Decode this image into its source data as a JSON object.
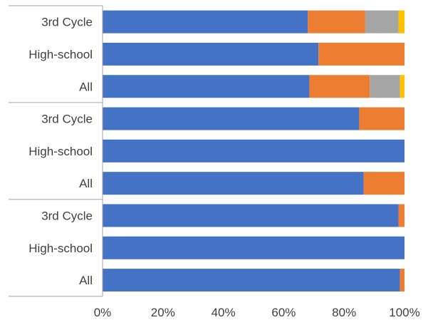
{
  "chart_data": {
    "type": "bar",
    "orientation": "horizontal",
    "stacked": "percent",
    "title": "",
    "xlabel": "",
    "ylabel": "",
    "xlim": [
      0,
      100
    ],
    "x_ticks": [
      "0%",
      "20%",
      "40%",
      "60%",
      "80%",
      "100%"
    ],
    "legend": "none",
    "grid": false,
    "groups": [
      {
        "rows": [
          {
            "label": "3rd Cycle",
            "values": [
              68,
              19,
              11,
              2
            ]
          },
          {
            "label": "High-school",
            "values": [
              71.5,
              28.5,
              0,
              0
            ]
          },
          {
            "label": "All",
            "values": [
              68.5,
              20,
              10,
              1.5
            ]
          }
        ]
      },
      {
        "rows": [
          {
            "label": "3rd Cycle",
            "values": [
              85,
              15,
              0,
              0
            ]
          },
          {
            "label": "High-school",
            "values": [
              100,
              0,
              0,
              0
            ]
          },
          {
            "label": "All",
            "values": [
              86.5,
              13.5,
              0,
              0
            ]
          }
        ]
      },
      {
        "rows": [
          {
            "label": "3rd Cycle",
            "values": [
              98,
              2,
              0,
              0
            ]
          },
          {
            "label": "High-school",
            "values": [
              100,
              0,
              0,
              0
            ]
          },
          {
            "label": "All",
            "values": [
              98.5,
              1.5,
              0,
              0
            ]
          }
        ]
      }
    ],
    "colors": [
      "#4472C4",
      "#ED7D31",
      "#A5A5A5",
      "#FFC000"
    ]
  }
}
